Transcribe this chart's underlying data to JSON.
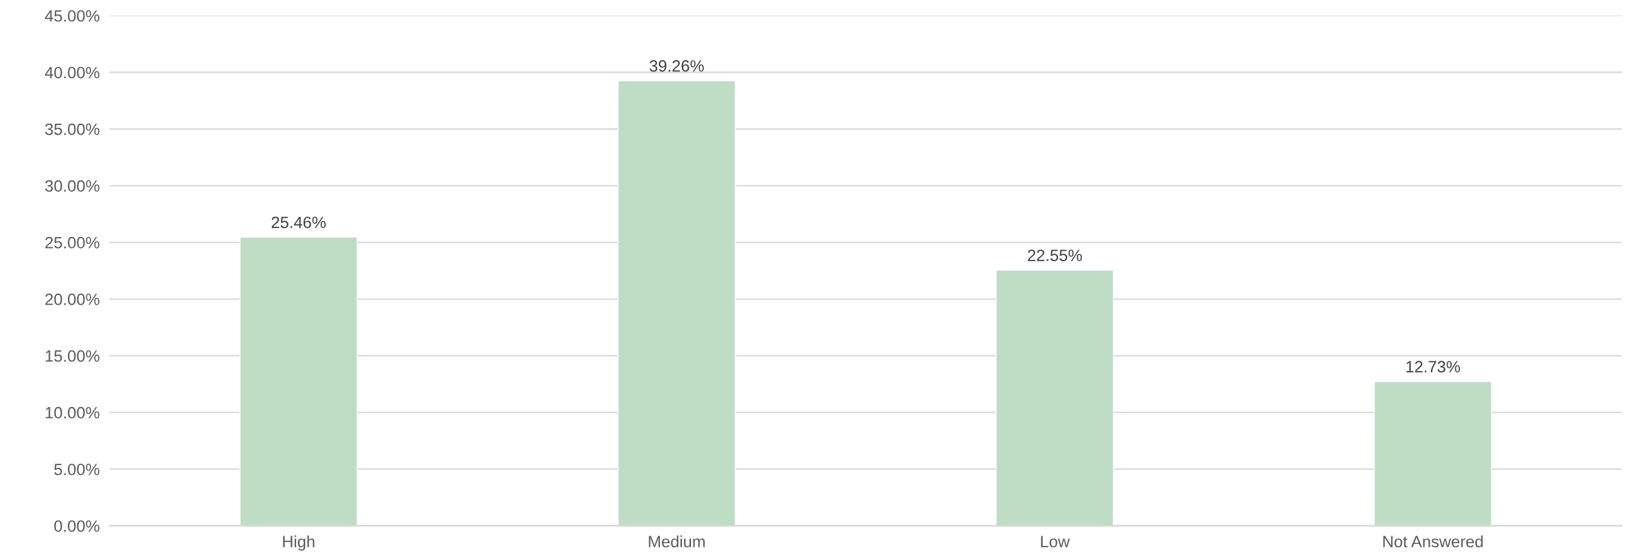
{
  "chart_data": {
    "type": "bar",
    "categories": [
      "High",
      "Medium",
      "Low",
      "Not Answered"
    ],
    "values": [
      25.46,
      39.26,
      22.55,
      12.73
    ],
    "value_labels": [
      "25.46%",
      "39.26%",
      "22.55%",
      "12.73%"
    ],
    "color": "#bfdcc5",
    "ylim": [
      0,
      45
    ],
    "yticks": [
      {
        "value": 0,
        "label": "0.00%"
      },
      {
        "value": 5,
        "label": "5.00%"
      },
      {
        "value": 10,
        "label": "10.00%"
      },
      {
        "value": 15,
        "label": "15.00%"
      },
      {
        "value": 20,
        "label": "20.00%"
      },
      {
        "value": 25,
        "label": "25.00%"
      },
      {
        "value": 30,
        "label": "30.00%"
      },
      {
        "value": 35,
        "label": "35.00%"
      },
      {
        "value": 40,
        "label": "40.00%"
      },
      {
        "value": 45,
        "label": "45.00%"
      }
    ],
    "grid": "y",
    "legend": false
  }
}
